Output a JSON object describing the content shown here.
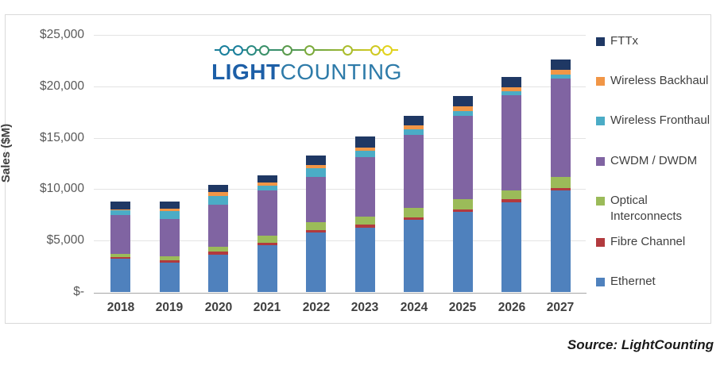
{
  "source_note": "Source: LightCounting",
  "logo": {
    "name": "LightCounting",
    "brand_bold": "LIGHT",
    "brand_light": "COUNTING",
    "brand_bold_color": "#1d5fa7",
    "brand_light_color": "#2e7ba9",
    "dot_colors": [
      "#1a7f9c",
      "#1a7f9c",
      "#2b8a82",
      "#3a9069",
      "#5a9a4c",
      "#7cab3c",
      "#abbd2d",
      "#cfc922",
      "#e2d31d"
    ],
    "dot_x": [
      15,
      32,
      49,
      65,
      94,
      122,
      170,
      205,
      220
    ]
  },
  "chart_data": {
    "type": "bar",
    "stacked": true,
    "title": "",
    "xlabel": "",
    "ylabel": "Sales ($M)",
    "ylim": [
      0,
      25000
    ],
    "ytick_values": [
      0,
      5000,
      10000,
      15000,
      20000,
      25000
    ],
    "ytick_labels": [
      "$-",
      "$5,000",
      "$10,000",
      "$15,000",
      "$20,000",
      "$25,000"
    ],
    "grid": true,
    "legend_position": "right",
    "legend_order_top_to_bottom": [
      "FTTx",
      "Wireless Backhaul",
      "Wireless Fronthaul",
      "CWDM / DWDM",
      "Optical Interconnects",
      "Fibre Channel",
      "Ethernet"
    ],
    "categories": [
      "2018",
      "2019",
      "2020",
      "2021",
      "2022",
      "2023",
      "2024",
      "2025",
      "2026",
      "2027"
    ],
    "series": [
      {
        "name": "Ethernet",
        "color": "#4f81bd",
        "values": [
          3250,
          2860,
          3640,
          4520,
          5770,
          6280,
          7000,
          7820,
          8750,
          9880
        ]
      },
      {
        "name": "Fibre Channel",
        "color": "#b23a3e",
        "values": [
          180,
          260,
          260,
          260,
          260,
          260,
          260,
          210,
          260,
          200
        ]
      },
      {
        "name": "Optical Interconnects",
        "color": "#9bbb59",
        "values": [
          250,
          390,
          520,
          700,
          770,
          820,
          900,
          1030,
          880,
          1110
        ]
      },
      {
        "name": "CWDM / DWDM",
        "color": "#8064a2",
        "values": [
          3820,
          3600,
          4080,
          4380,
          4400,
          5740,
          7100,
          8050,
          9230,
          9600
        ]
      },
      {
        "name": "Wireless Fronthaul",
        "color": "#4bacc6",
        "values": [
          420,
          780,
          870,
          510,
          800,
          620,
          520,
          520,
          390,
          390
        ]
      },
      {
        "name": "Wireless Backhaul",
        "color": "#f19646",
        "values": [
          120,
          180,
          330,
          260,
          330,
          330,
          390,
          410,
          390,
          390
        ]
      },
      {
        "name": "FTTx",
        "color": "#1f3864",
        "values": [
          780,
          730,
          700,
          720,
          960,
          1080,
          950,
          1000,
          980,
          1030
        ]
      }
    ],
    "totals": [
      8820,
      8800,
      10400,
      11350,
      13290,
      15130,
      17120,
      19040,
      20880,
      22600
    ]
  }
}
